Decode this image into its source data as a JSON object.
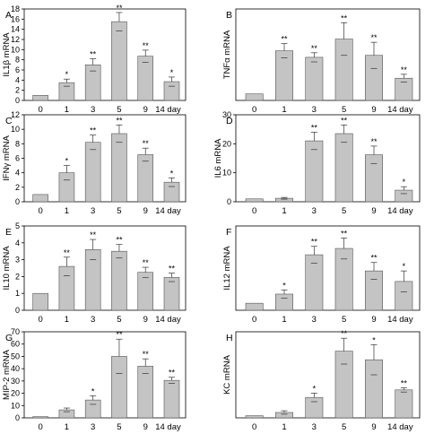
{
  "chart_data": [
    {
      "panel": "A",
      "type": "bar",
      "ylabel": "IL1β mRNA",
      "categories": [
        "0",
        "1",
        "3",
        "5",
        "9",
        "14 day"
      ],
      "values": [
        1,
        3.5,
        7,
        15.5,
        8.7,
        3.7
      ],
      "errors": [
        0,
        0.7,
        1.2,
        1.8,
        1.2,
        0.9
      ],
      "significance": [
        "",
        "*",
        "**",
        "**",
        "**",
        "*"
      ],
      "ylim": [
        0,
        18
      ],
      "yticks": [
        0,
        2,
        4,
        6,
        8,
        10,
        12,
        14,
        16,
        18
      ],
      "ytick_labels": [
        "0",
        "2",
        "4",
        "6",
        "8",
        "10",
        "12",
        "14",
        "16",
        "18"
      ]
    },
    {
      "panel": "B",
      "type": "bar",
      "ylabel": "TNFα mRNA",
      "categories": [
        "0",
        "1",
        "3",
        "5",
        "9",
        "14 day"
      ],
      "values": [
        1,
        7.6,
        6.6,
        9.4,
        6.9,
        3.4
      ],
      "errors": [
        0,
        1.1,
        0.7,
        2.5,
        2.0,
        0.6
      ],
      "significance": [
        "",
        "**",
        "**",
        "**",
        "**",
        "**"
      ],
      "ylim": [
        0,
        14
      ],
      "yticks": [],
      "ytick_labels": []
    },
    {
      "panel": "C",
      "type": "bar",
      "ylabel": "IFNγ mRNA",
      "categories": [
        "0",
        "1",
        "3",
        "5",
        "9",
        "14 day"
      ],
      "values": [
        1,
        4,
        8.2,
        9.4,
        6.5,
        2.7
      ],
      "errors": [
        0,
        1.0,
        1.0,
        1.2,
        0.9,
        0.6
      ],
      "significance": [
        "",
        "*",
        "**",
        "**",
        "**",
        "*"
      ],
      "ylim": [
        0,
        12
      ],
      "yticks": [
        0,
        2,
        4,
        6,
        8,
        10,
        12
      ],
      "ytick_labels": [
        "0",
        "2",
        "4",
        "6",
        "8",
        "10",
        "12"
      ]
    },
    {
      "panel": "D",
      "type": "bar",
      "ylabel": "IL6 mRNA",
      "categories": [
        "0",
        "1",
        "3",
        "5",
        "9",
        "14 day"
      ],
      "values": [
        1,
        1.2,
        21,
        23.5,
        16.2,
        4
      ],
      "errors": [
        0,
        0.3,
        3,
        3,
        3,
        1.2
      ],
      "significance": [
        "",
        "",
        "**",
        "**",
        "**",
        "*"
      ],
      "ylim": [
        0,
        30
      ],
      "yticks": [
        0,
        10,
        20,
        30
      ],
      "ytick_labels": [
        "0",
        "10",
        "20",
        "30"
      ]
    },
    {
      "panel": "E",
      "type": "bar",
      "ylabel": "IL10 mRNA",
      "categories": [
        "0",
        "1",
        "3",
        "5",
        "9",
        "14 day"
      ],
      "values": [
        1,
        2.6,
        3.6,
        3.5,
        2.25,
        1.95
      ],
      "errors": [
        0,
        0.55,
        0.6,
        0.4,
        0.3,
        0.25
      ],
      "significance": [
        "",
        "**",
        "**",
        "**",
        "**",
        "**"
      ],
      "ylim": [
        0,
        5
      ],
      "yticks": [
        0,
        1,
        2,
        3,
        4,
        5
      ],
      "ytick_labels": [
        "0",
        "1",
        "2",
        "3",
        "4",
        "5"
      ]
    },
    {
      "panel": "F",
      "type": "bar",
      "ylabel": "IL12 mRNA",
      "categories": [
        "0",
        "1",
        "3",
        "5",
        "9",
        "14 day"
      ],
      "values": [
        1,
        2.3,
        7.9,
        8.8,
        5.6,
        4.1
      ],
      "errors": [
        0,
        0.6,
        1.2,
        1.5,
        1.2,
        1.5
      ],
      "significance": [
        "",
        "*",
        "**",
        "**",
        "**",
        "*"
      ],
      "ylim": [
        0,
        12
      ],
      "yticks": [],
      "ytick_labels": []
    },
    {
      "panel": "G",
      "type": "bar",
      "ylabel": "MIP-2 mRNA",
      "categories": [
        "0",
        "1",
        "3",
        "5",
        "9",
        "14 day"
      ],
      "values": [
        1,
        6.5,
        14.5,
        50,
        42,
        30.5
      ],
      "errors": [
        0,
        1.5,
        3.5,
        14,
        6,
        2.5
      ],
      "significance": [
        "",
        "",
        "*",
        "**",
        "**",
        "**"
      ],
      "ylim": [
        0,
        70
      ],
      "yticks": [
        0,
        10,
        20,
        30,
        40,
        50,
        60,
        70
      ],
      "ytick_labels": [
        "0",
        "10",
        "20",
        "30",
        "40",
        "50",
        "60",
        "70"
      ]
    },
    {
      "panel": "H",
      "type": "bar",
      "ylabel": "KC mRNA",
      "categories": [
        "0",
        "1",
        "3",
        "5",
        "9",
        "14 day"
      ],
      "values": [
        1,
        2.5,
        9.5,
        31,
        27,
        13
      ],
      "errors": [
        0,
        0.8,
        2,
        6,
        7,
        1
      ],
      "significance": [
        "",
        "",
        "*",
        "**",
        "*",
        "**"
      ],
      "ylim": [
        0,
        40
      ],
      "yticks": [],
      "ytick_labels": []
    }
  ]
}
